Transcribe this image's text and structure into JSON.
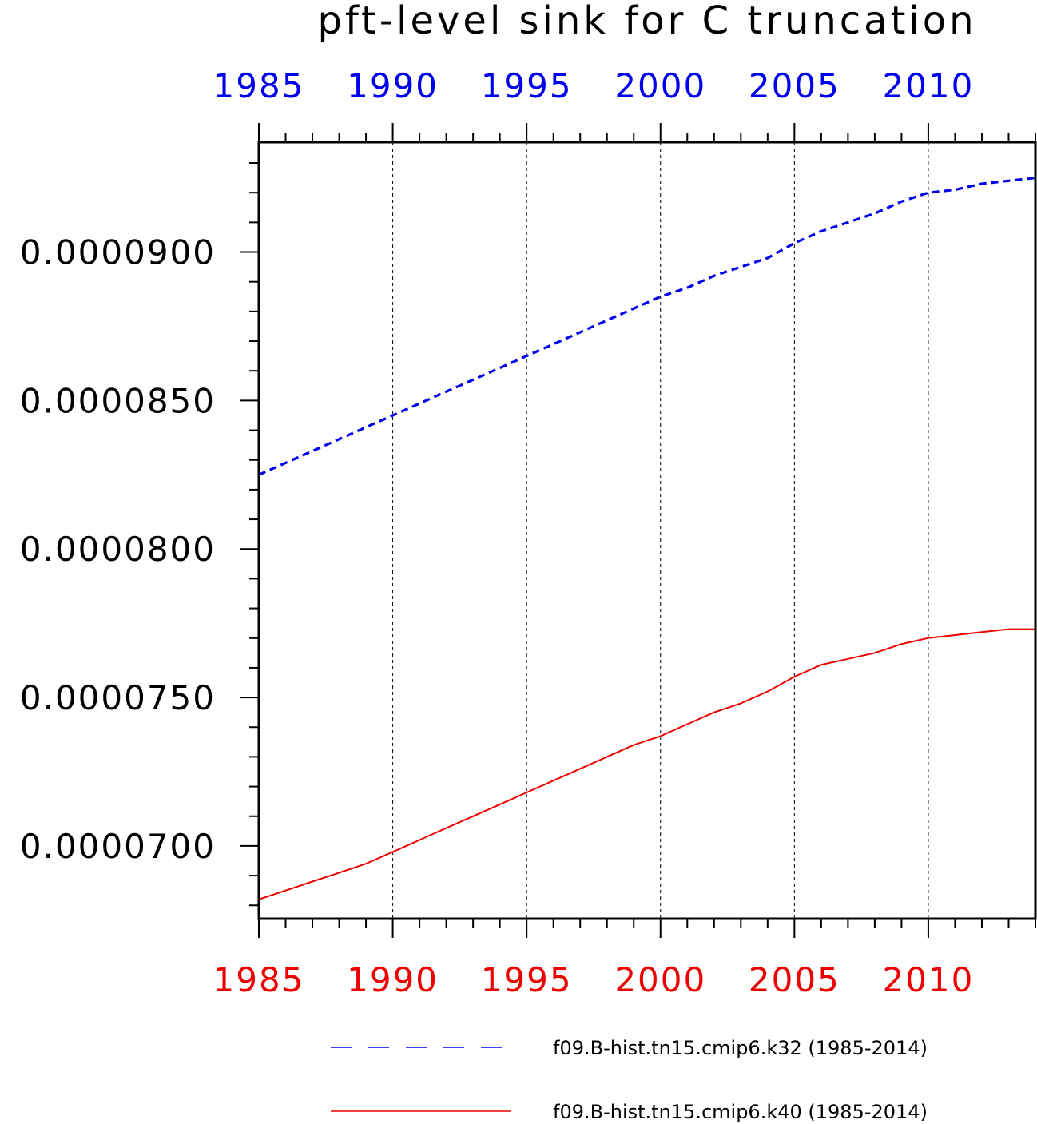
{
  "chart_data": {
    "type": "line",
    "title": "pft-level sink for C truncation",
    "x": [
      1985,
      1986,
      1987,
      1988,
      1989,
      1990,
      1991,
      1992,
      1993,
      1994,
      1995,
      1996,
      1997,
      1998,
      1999,
      2000,
      2001,
      2002,
      2003,
      2004,
      2005,
      2006,
      2007,
      2008,
      2009,
      2010,
      2011,
      2012,
      2013,
      2014
    ],
    "series": [
      {
        "name": "f09.B-hist.tn15.cmip6.k32 (1985-2014)",
        "color": "#0000ee",
        "style": "dashed",
        "values": [
          8.25e-05,
          8.29e-05,
          8.33e-05,
          8.37e-05,
          8.41e-05,
          8.45e-05,
          8.49e-05,
          8.53e-05,
          8.57e-05,
          8.61e-05,
          8.65e-05,
          8.69e-05,
          8.73e-05,
          8.77e-05,
          8.81e-05,
          8.85e-05,
          8.88e-05,
          8.92e-05,
          8.95e-05,
          8.98e-05,
          9.03e-05,
          9.07e-05,
          9.1e-05,
          9.13e-05,
          9.17e-05,
          9.2e-05,
          9.21e-05,
          9.23e-05,
          9.24e-05,
          9.25e-05
        ]
      },
      {
        "name": "f09.B-hist.tn15.cmip6.k40 (1985-2014)",
        "color": "#ee0000",
        "style": "solid",
        "values": [
          6.82e-05,
          6.85e-05,
          6.88e-05,
          6.91e-05,
          6.94e-05,
          6.98e-05,
          7.02e-05,
          7.06e-05,
          7.1e-05,
          7.14e-05,
          7.18e-05,
          7.22e-05,
          7.26e-05,
          7.3e-05,
          7.34e-05,
          7.37e-05,
          7.41e-05,
          7.45e-05,
          7.48e-05,
          7.52e-05,
          7.57e-05,
          7.61e-05,
          7.63e-05,
          7.65e-05,
          7.68e-05,
          7.7e-05,
          7.71e-05,
          7.72e-05,
          7.73e-05,
          7.73e-05
        ]
      }
    ],
    "xlim": [
      1985,
      2014
    ],
    "ylim": [
      6.755e-05,
      9.37e-05
    ],
    "xticks_major": [
      1985,
      1990,
      1995,
      2000,
      2005,
      2010
    ],
    "xtick_labels": [
      "1985",
      "1990",
      "1995",
      "2000",
      "2005",
      "2010"
    ],
    "yticks_major": [
      7e-05,
      7.5e-05,
      8e-05,
      8.5e-05,
      9e-05
    ],
    "ytick_labels": [
      "0.0000700",
      "0.0000750",
      "0.0000800",
      "0.0000850",
      "0.0000900"
    ],
    "top_axis_color": "#0000ee",
    "bottom_axis_color": "#ee0000",
    "grid": "vertical dashed at major x ticks",
    "legend_placement": "bottom"
  }
}
